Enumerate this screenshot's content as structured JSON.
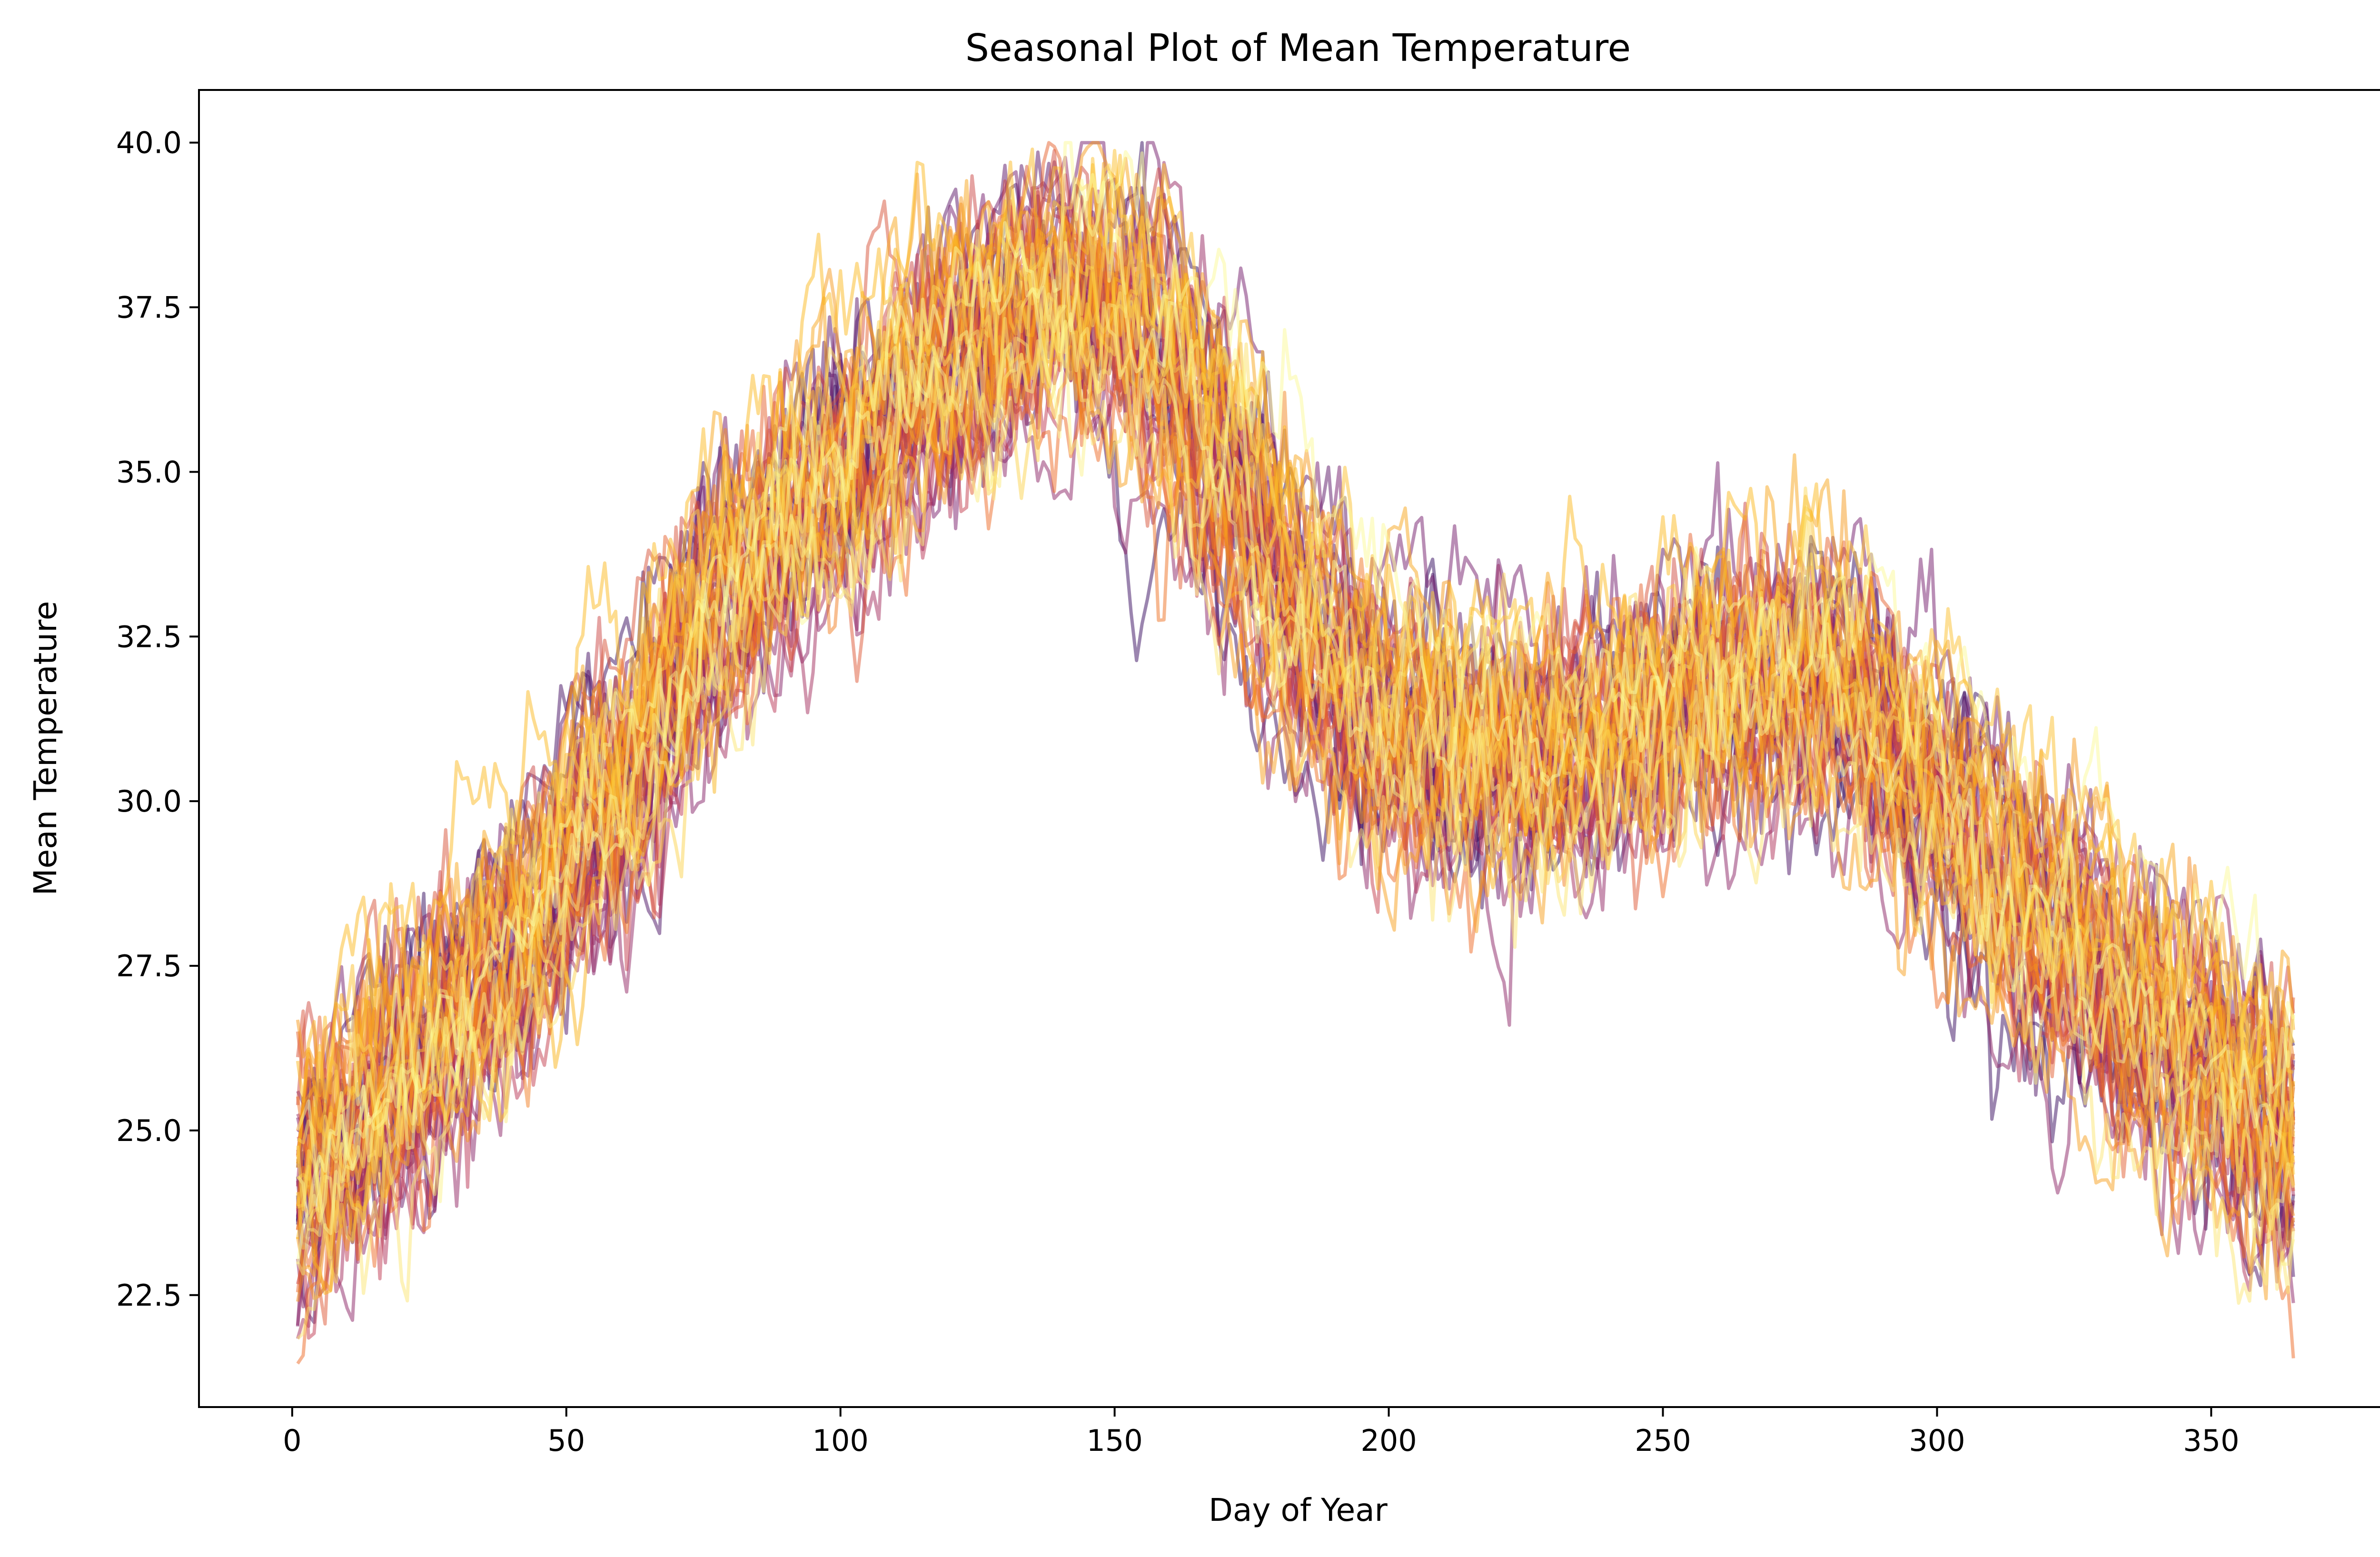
{
  "chart_data": {
    "type": "line",
    "title": "Seasonal Plot of Mean Temperature",
    "xlabel": "Day of Year",
    "ylabel": "Mean Temperature",
    "xlim": [
      -17,
      384
    ],
    "ylim": [
      20.8,
      40.8
    ],
    "xticks": [
      0,
      50,
      100,
      150,
      200,
      250,
      300,
      350
    ],
    "yticks": [
      22.5,
      25.0,
      27.5,
      30.0,
      32.5,
      35.0,
      37.5,
      40.0
    ],
    "ytick_labels": [
      "22.5",
      "25.0",
      "27.5",
      "30.0",
      "32.5",
      "35.0",
      "37.5",
      "40.0"
    ],
    "grid": false,
    "legend": "none",
    "n_series": 60,
    "series_alpha": 0.5,
    "colormap": "inferno",
    "colormap_range": [
      0.15,
      1.0
    ],
    "colormap_stops": [
      "#000004",
      "#320a5e",
      "#781c6d",
      "#bc3754",
      "#ed6925",
      "#fbb61a",
      "#fcffa4"
    ],
    "seasonal_profile": {
      "day": [
        1,
        20,
        40,
        60,
        80,
        100,
        120,
        140,
        155,
        170,
        185,
        200,
        230,
        260,
        280,
        300,
        320,
        340,
        365
      ],
      "mean_temperature": [
        24.0,
        25.5,
        27.5,
        30.0,
        33.0,
        34.8,
        36.5,
        37.5,
        37.2,
        35.0,
        32.5,
        31.0,
        30.5,
        31.5,
        31.8,
        30.0,
        28.0,
        26.5,
        24.8
      ]
    }
  }
}
